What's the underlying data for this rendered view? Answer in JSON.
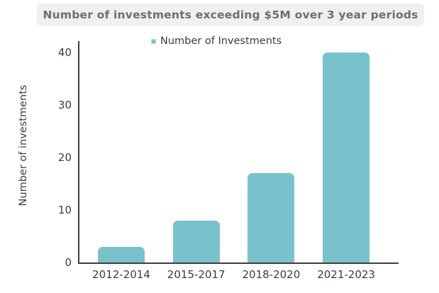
{
  "title": "Number of investments exceeding $5M over 3 year periods",
  "legend": {
    "label": "Number of Investments",
    "marker_color": "#79c2cb"
  },
  "y_axis": {
    "title": "Number of investments"
  },
  "chart_data": {
    "type": "bar",
    "title": "Number of investments exceeding $5M over 3 year periods",
    "categories": [
      "2012-2014",
      "2015-2017",
      "2018-2020",
      "2021-2023"
    ],
    "values": [
      3,
      8,
      17,
      40
    ],
    "series": [
      {
        "name": "Number of Investments",
        "values": [
          3,
          8,
          17,
          40
        ]
      }
    ],
    "xlabel": "",
    "ylabel": "Number of investments",
    "ylim": [
      0,
      42
    ],
    "yticks": [
      0,
      10,
      20,
      30,
      40
    ],
    "grid": false,
    "legend_position": "top-center",
    "bar_color": "#79c2cb",
    "axis_color": "#3f3f3f",
    "text_color": "#3b3d40",
    "title_bg": "#f0f0f0",
    "title_color": "#6e6e6e"
  }
}
